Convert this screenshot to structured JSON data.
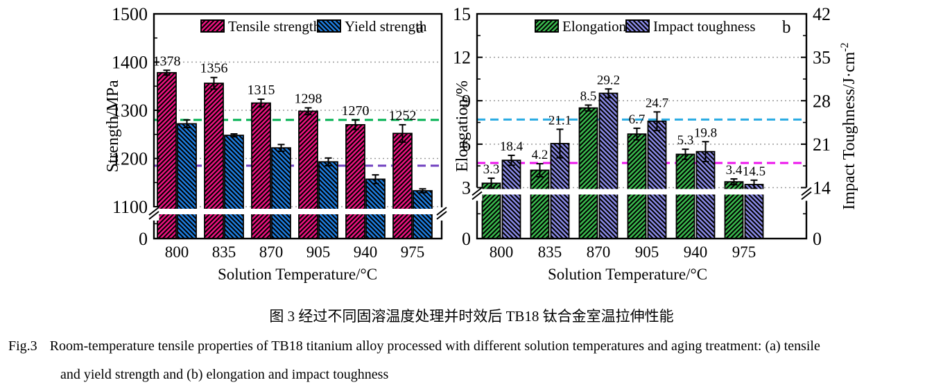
{
  "captions": {
    "zh": "图 3  经过不同固溶温度处理并时效后 TB18 钛合金室温拉伸性能",
    "en_label": "Fig.3",
    "en_line1": "Room-temperature tensile properties of TB18 titanium alloy processed with different solution temperatures and aging treatment: (a) tensile",
    "en_line2": "and yield strength and (b) elongation and impact toughness"
  },
  "chart_data": [
    {
      "id": "a",
      "type": "bar",
      "corner_label": "a",
      "xlabel": "Solution Temperature/°C",
      "ylabel_left": "Strength/MPa",
      "categories": [
        "800",
        "835",
        "870",
        "905",
        "940",
        "975"
      ],
      "y_axis_left": {
        "ticks": [
          0,
          1100,
          1200,
          1300,
          1400,
          1500
        ],
        "range_low": 1100,
        "range_high": 1500,
        "axis_break_between": [
          0,
          1100
        ],
        "gridlines": [
          1100,
          1200,
          1300,
          1400
        ]
      },
      "series": [
        {
          "name": "Tensile strength",
          "axis": "left",
          "color": "#EE1280",
          "hatch": "/",
          "values": [
            1378,
            1356,
            1315,
            1298,
            1270,
            1252
          ],
          "errors": [
            5,
            12,
            8,
            7,
            10,
            18
          ],
          "value_labels": true
        },
        {
          "name": "Yield strength",
          "axis": "left",
          "color": "#1E7EE0",
          "hatch": "\\",
          "values": [
            1272,
            1248,
            1222,
            1193,
            1157,
            1133
          ],
          "errors": [
            8,
            3,
            7,
            8,
            9,
            4
          ],
          "value_labels": false
        }
      ],
      "ref_lines": [
        {
          "axis": "left",
          "value": 1280,
          "color": "#00B050"
        },
        {
          "axis": "left",
          "value": 1185,
          "color": "#7040C0"
        }
      ]
    },
    {
      "id": "b",
      "type": "bar",
      "corner_label": "b",
      "xlabel": "Solution Temperature/°C",
      "ylabel_left": "Elongation/%",
      "ylabel_right": "Impact Toughness/J·cm",
      "ylabel_right_sup": "-2",
      "categories": [
        "800",
        "835",
        "870",
        "905",
        "940",
        "975"
      ],
      "y_axis_left": {
        "ticks": [
          0,
          3,
          6,
          9,
          12,
          15
        ],
        "range_low": 3,
        "range_high": 15,
        "axis_break_between": [
          0,
          3
        ],
        "gridlines": [
          3,
          6,
          9,
          12
        ]
      },
      "y_axis_right": {
        "ticks": [
          0,
          14,
          21,
          28,
          35,
          42
        ],
        "range_low": 14,
        "range_high": 42,
        "axis_break_between": [
          0,
          14
        ]
      },
      "series": [
        {
          "name": "Elongation",
          "axis": "left",
          "color": "#3ABB4E",
          "hatch": "/",
          "values": [
            3.3,
            4.2,
            8.5,
            6.7,
            5.3,
            3.4
          ],
          "errors": [
            0.35,
            0.45,
            0.2,
            0.4,
            0.35,
            0.2
          ],
          "value_labels": true
        },
        {
          "name": "Impact toughness",
          "axis": "right",
          "color": "#8B8BE8",
          "hatch": "\\",
          "values": [
            18.4,
            21.1,
            29.2,
            24.7,
            19.8,
            14.5
          ],
          "errors": [
            0.8,
            2.3,
            0.7,
            1.5,
            1.6,
            0.7
          ],
          "value_labels": true
        }
      ],
      "ref_lines": [
        {
          "axis": "left",
          "value": 7.7,
          "color": "#29ABE2"
        },
        {
          "axis": "left",
          "value": 4.7,
          "color": "#EC13EC"
        }
      ]
    }
  ]
}
